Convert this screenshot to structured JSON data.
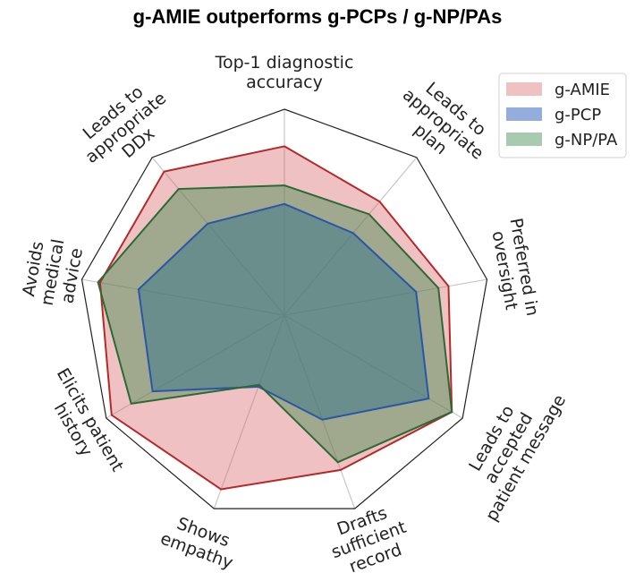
{
  "chart_data": {
    "type": "radar",
    "title": "g-AMIE outperforms g-PCPs / g-NP/PAs",
    "categories": [
      [
        "Top-1 diagnostic",
        "accuracy"
      ],
      [
        "Leads to",
        "appropriate",
        "plan"
      ],
      [
        "Preferred in",
        "oversight"
      ],
      [
        "Leads to",
        "accepted",
        "patient message"
      ],
      [
        "Drafts",
        "sufficient",
        "record"
      ],
      [
        "Shows",
        "empathy"
      ],
      [
        "Elicits patient",
        "history"
      ],
      [
        "Avoids",
        "medical",
        "advice"
      ],
      [
        "Leads to",
        "appropriate",
        "DDx"
      ]
    ],
    "rlim": [
      0,
      1
    ],
    "grid": true,
    "legend": "top-right",
    "series": [
      {
        "name": "g-AMIE",
        "color": "#b22a2a",
        "fill": "#d9646a",
        "values": [
          0.82,
          0.72,
          0.81,
          0.94,
          0.8,
          0.9,
          0.97,
          0.91,
          0.91
        ]
      },
      {
        "name": "g-PCP",
        "color": "#2a55a8",
        "fill": "#3a6cc0",
        "values": [
          0.54,
          0.52,
          0.65,
          0.81,
          0.54,
          0.37,
          0.74,
          0.72,
          0.58
        ]
      },
      {
        "name": "g-NP/PA",
        "color": "#2a6a35",
        "fill": "#3f8a4c",
        "values": [
          0.63,
          0.64,
          0.76,
          0.94,
          0.76,
          0.36,
          0.86,
          0.92,
          0.8
        ]
      }
    ]
  }
}
